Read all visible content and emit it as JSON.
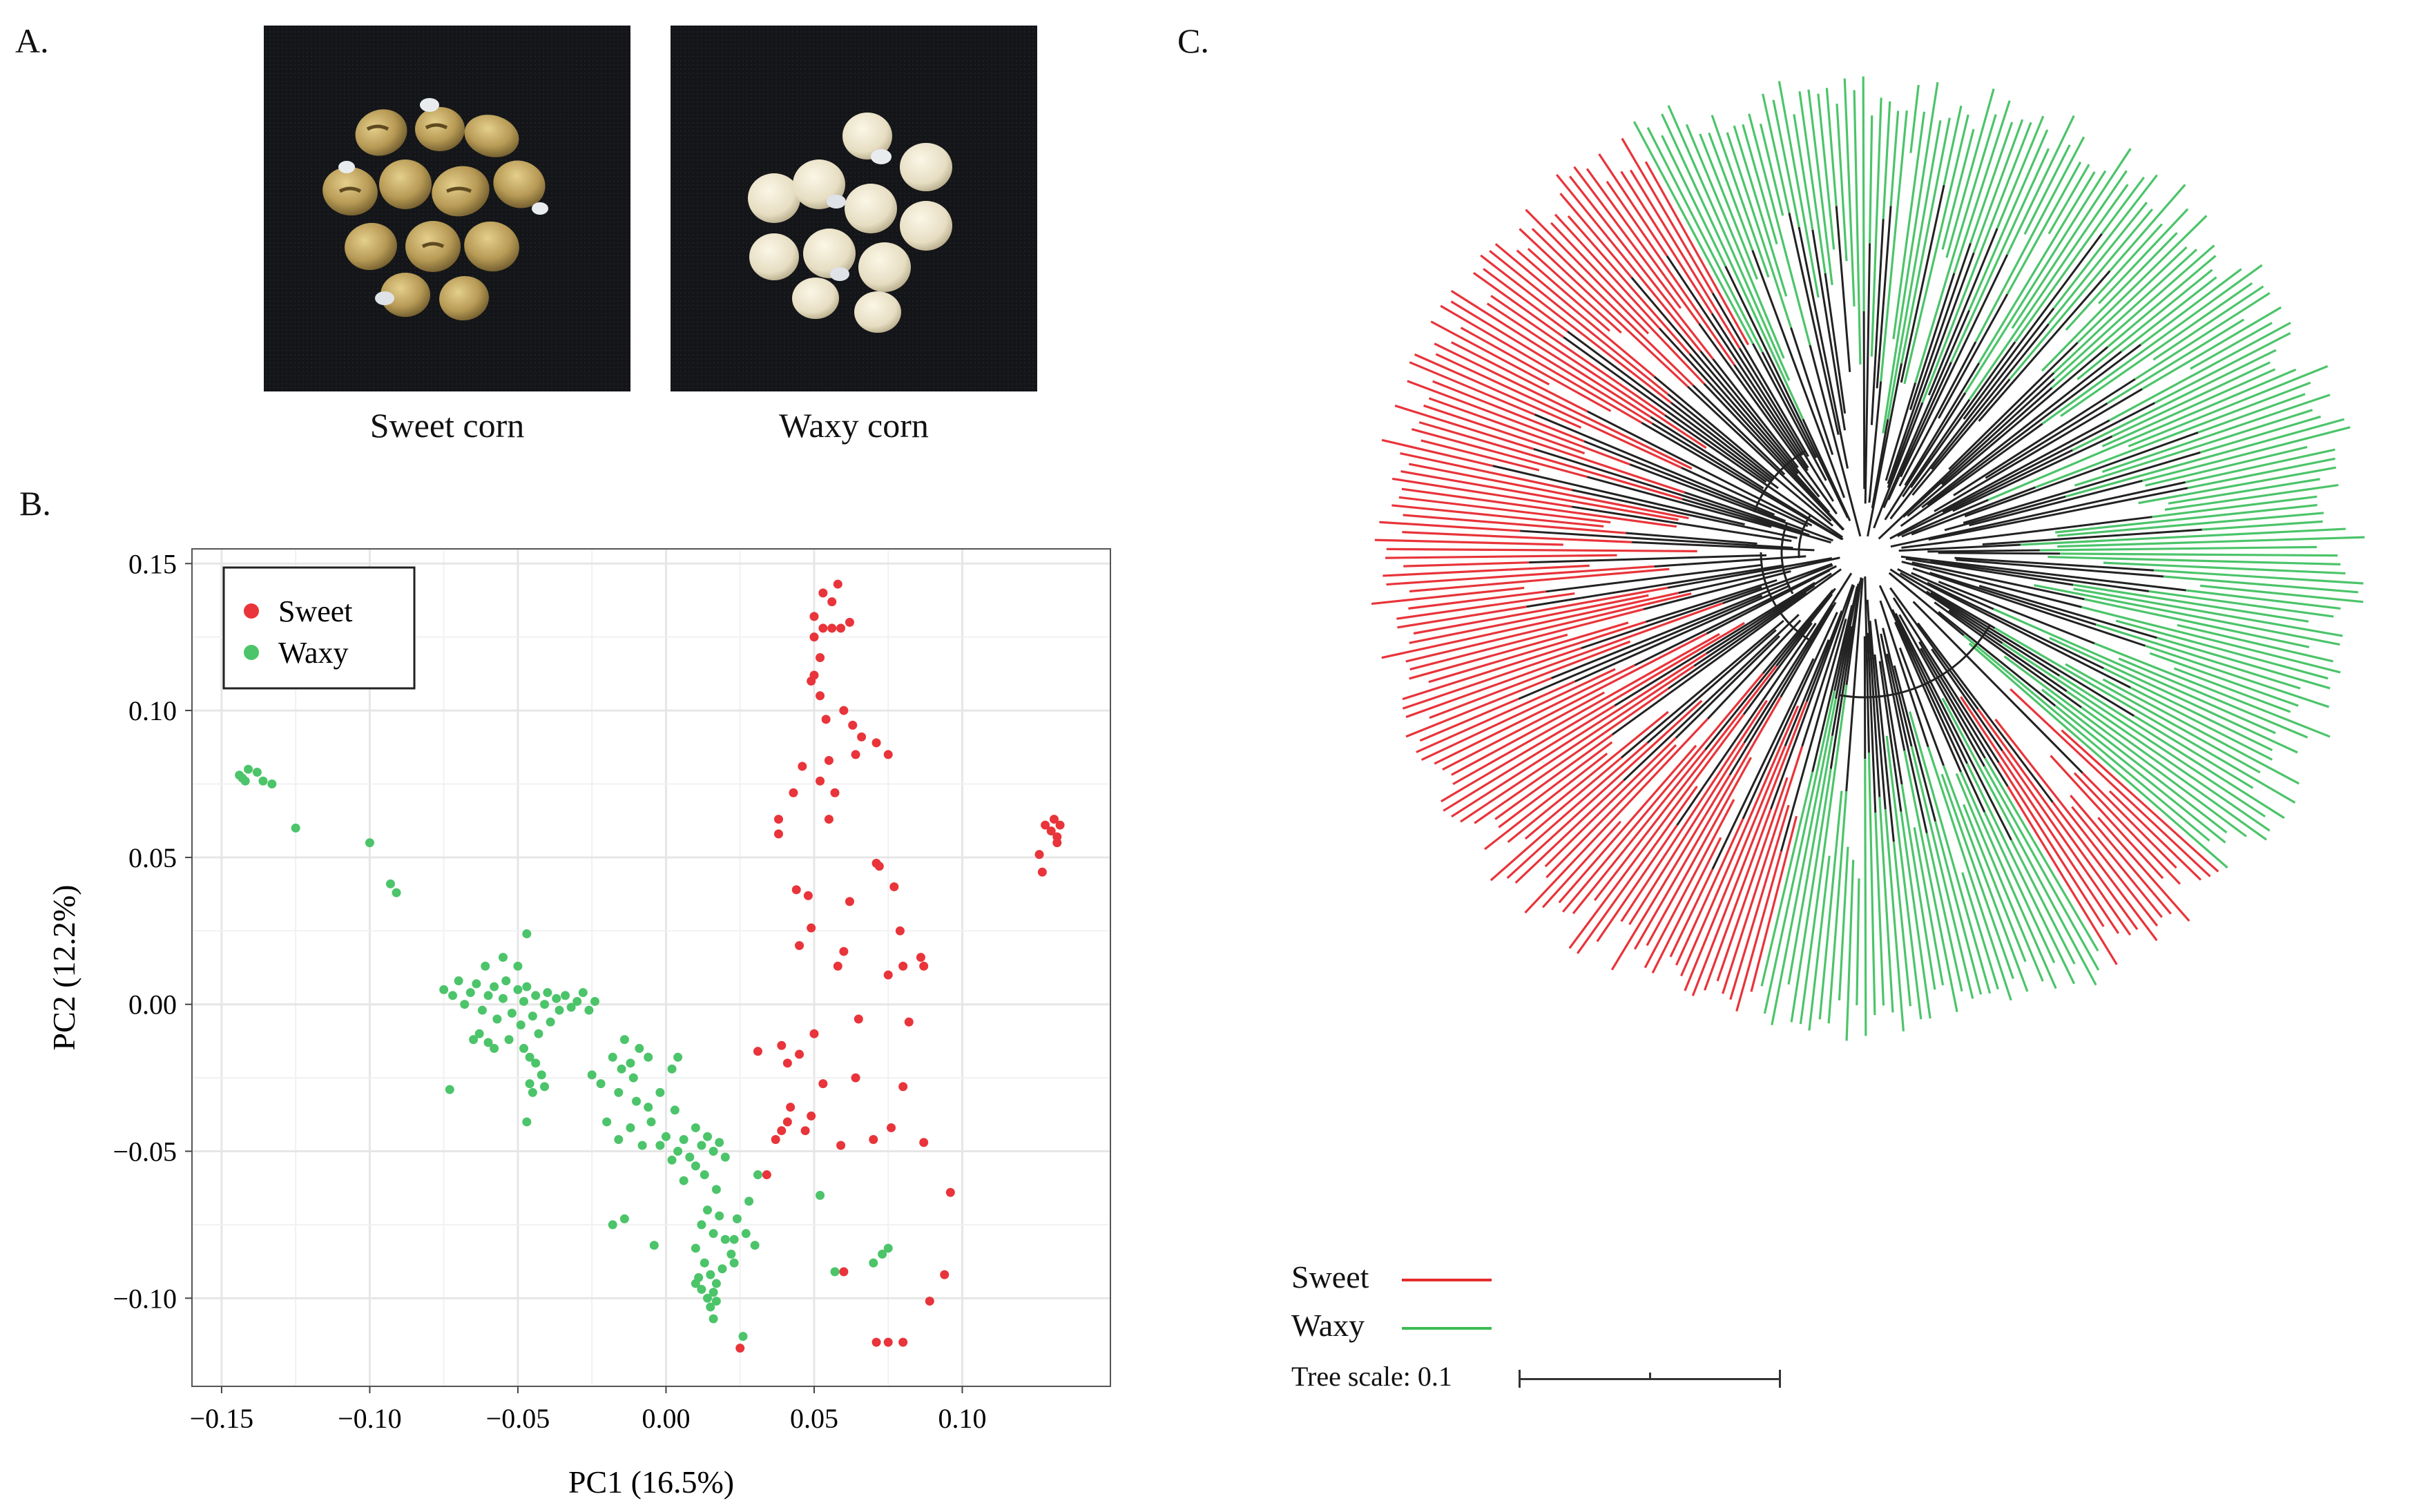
{
  "panel_a": {
    "label": "A.",
    "photo_left_caption": "Sweet corn",
    "photo_right_caption": "Waxy corn"
  },
  "panel_b": {
    "label": "B."
  },
  "panel_c": {
    "label": "C.",
    "legend": [
      {
        "name": "Sweet",
        "color": "#e52b2b"
      },
      {
        "name": "Waxy",
        "color": "#3dbb55"
      }
    ],
    "tree_scale_label": "Tree scale: 0.1"
  },
  "colors": {
    "sweet": "#e8343a",
    "waxy": "#4cc46a",
    "branch": "#222222"
  },
  "chart_data": {
    "type": "scatter",
    "xlabel": "PC1 (16.5%)",
    "ylabel": "PC2 (12.2%)",
    "xlim": [
      -0.16,
      0.15
    ],
    "ylim": [
      -0.13,
      0.155
    ],
    "xticks": [
      -0.15,
      -0.1,
      -0.05,
      0.0,
      0.05,
      0.1
    ],
    "xtick_labels": [
      "−0.15",
      "−0.10",
      "−0.05",
      "0.00",
      "0.05",
      "0.10"
    ],
    "yticks": [
      -0.1,
      -0.05,
      0.0,
      0.05,
      0.1,
      0.15
    ],
    "ytick_labels": [
      "−0.10",
      "−0.05",
      "0.00",
      "0.05",
      "0.10",
      "0.15"
    ],
    "grid": true,
    "legend_position": "top-left",
    "series": [
      {
        "name": "Sweet",
        "color": "#e8343a",
        "points": [
          [
            0.053,
            0.14
          ],
          [
            0.058,
            0.143
          ],
          [
            0.056,
            0.137
          ],
          [
            0.05,
            0.132
          ],
          [
            0.053,
            0.128
          ],
          [
            0.05,
            0.125
          ],
          [
            0.056,
            0.128
          ],
          [
            0.059,
            0.128
          ],
          [
            0.062,
            0.13
          ],
          [
            0.052,
            0.118
          ],
          [
            0.05,
            0.112
          ],
          [
            0.049,
            0.11
          ],
          [
            0.052,
            0.105
          ],
          [
            0.054,
            0.097
          ],
          [
            0.06,
            0.1
          ],
          [
            0.063,
            0.095
          ],
          [
            0.066,
            0.091
          ],
          [
            0.071,
            0.089
          ],
          [
            0.055,
            0.083
          ],
          [
            0.046,
            0.081
          ],
          [
            0.064,
            0.085
          ],
          [
            0.075,
            0.085
          ],
          [
            0.052,
            0.076
          ],
          [
            0.043,
            0.072
          ],
          [
            0.057,
            0.072
          ],
          [
            0.038,
            0.063
          ],
          [
            0.038,
            0.058
          ],
          [
            0.055,
            0.063
          ],
          [
            0.071,
            0.048
          ],
          [
            0.044,
            0.039
          ],
          [
            0.048,
            0.037
          ],
          [
            0.072,
            0.047
          ],
          [
            0.077,
            0.04
          ],
          [
            0.062,
            0.035
          ],
          [
            0.049,
            0.026
          ],
          [
            0.079,
            0.025
          ],
          [
            0.045,
            0.02
          ],
          [
            0.06,
            0.018
          ],
          [
            0.08,
            0.013
          ],
          [
            0.086,
            0.016
          ],
          [
            0.087,
            0.013
          ],
          [
            0.058,
            0.013
          ],
          [
            0.075,
            0.01
          ],
          [
            0.082,
            -0.006
          ],
          [
            0.065,
            -0.005
          ],
          [
            0.039,
            -0.014
          ],
          [
            0.045,
            -0.017
          ],
          [
            0.031,
            -0.016
          ],
          [
            0.041,
            -0.02
          ],
          [
            0.05,
            -0.01
          ],
          [
            0.064,
            -0.025
          ],
          [
            0.053,
            -0.027
          ],
          [
            0.08,
            -0.028
          ],
          [
            0.042,
            -0.035
          ],
          [
            0.041,
            -0.04
          ],
          [
            0.049,
            -0.038
          ],
          [
            0.039,
            -0.043
          ],
          [
            0.047,
            -0.043
          ],
          [
            0.037,
            -0.046
          ],
          [
            0.07,
            -0.046
          ],
          [
            0.076,
            -0.042
          ],
          [
            0.059,
            -0.048
          ],
          [
            0.087,
            -0.047
          ],
          [
            0.096,
            -0.064
          ],
          [
            0.034,
            -0.058
          ],
          [
            0.06,
            -0.091
          ],
          [
            0.089,
            -0.101
          ],
          [
            0.094,
            -0.092
          ],
          [
            0.071,
            -0.115
          ],
          [
            0.075,
            -0.115
          ],
          [
            0.08,
            -0.115
          ],
          [
            0.025,
            -0.117
          ],
          [
            0.126,
            0.051
          ],
          [
            0.127,
            0.045
          ],
          [
            0.128,
            0.061
          ],
          [
            0.131,
            0.063
          ],
          [
            0.13,
            0.059
          ],
          [
            0.132,
            0.057
          ],
          [
            0.133,
            0.061
          ],
          [
            0.132,
            0.055
          ]
        ]
      },
      {
        "name": "Waxy",
        "color": "#4cc46a",
        "points": [
          [
            -0.143,
            0.077
          ],
          [
            -0.141,
            0.08
          ],
          [
            -0.138,
            0.079
          ],
          [
            -0.144,
            0.078
          ],
          [
            -0.136,
            0.076
          ],
          [
            -0.133,
            0.075
          ],
          [
            -0.142,
            0.076
          ],
          [
            -0.125,
            0.06
          ],
          [
            -0.1,
            0.055
          ],
          [
            -0.093,
            0.041
          ],
          [
            -0.091,
            0.038
          ],
          [
            -0.075,
            0.005
          ],
          [
            -0.072,
            0.003
          ],
          [
            -0.07,
            0.008
          ],
          [
            -0.068,
            0.0
          ],
          [
            -0.066,
            0.004
          ],
          [
            -0.064,
            0.007
          ],
          [
            -0.062,
            -0.002
          ],
          [
            -0.06,
            0.003
          ],
          [
            -0.058,
            0.006
          ],
          [
            -0.057,
            -0.005
          ],
          [
            -0.055,
            0.002
          ],
          [
            -0.054,
            0.008
          ],
          [
            -0.052,
            -0.003
          ],
          [
            -0.05,
            0.005
          ],
          [
            -0.049,
            -0.007
          ],
          [
            -0.048,
            0.001
          ],
          [
            -0.047,
            0.006
          ],
          [
            -0.045,
            -0.004
          ],
          [
            -0.044,
            0.003
          ],
          [
            -0.043,
            -0.01
          ],
          [
            -0.041,
            0.0
          ],
          [
            -0.04,
            0.004
          ],
          [
            -0.039,
            -0.006
          ],
          [
            -0.037,
            0.002
          ],
          [
            -0.036,
            -0.002
          ],
          [
            -0.034,
            0.003
          ],
          [
            -0.032,
            -0.001
          ],
          [
            -0.03,
            0.001
          ],
          [
            -0.028,
            0.004
          ],
          [
            -0.026,
            -0.002
          ],
          [
            -0.024,
            0.001
          ],
          [
            -0.061,
            0.013
          ],
          [
            -0.055,
            0.016
          ],
          [
            -0.05,
            0.013
          ],
          [
            -0.047,
            0.024
          ],
          [
            -0.063,
            -0.01
          ],
          [
            -0.06,
            -0.013
          ],
          [
            -0.058,
            -0.015
          ],
          [
            -0.053,
            -0.012
          ],
          [
            -0.048,
            -0.015
          ],
          [
            -0.046,
            -0.018
          ],
          [
            -0.044,
            -0.02
          ],
          [
            -0.042,
            -0.024
          ],
          [
            -0.046,
            -0.027
          ],
          [
            -0.045,
            -0.03
          ],
          [
            -0.041,
            -0.028
          ],
          [
            -0.073,
            -0.029
          ],
          [
            -0.065,
            -0.012
          ],
          [
            -0.047,
            -0.04
          ],
          [
            -0.02,
            -0.04
          ],
          [
            -0.016,
            -0.046
          ],
          [
            -0.025,
            -0.024
          ],
          [
            -0.022,
            -0.027
          ],
          [
            -0.018,
            -0.018
          ],
          [
            -0.015,
            -0.022
          ],
          [
            -0.012,
            -0.02
          ],
          [
            -0.009,
            -0.015
          ],
          [
            -0.011,
            -0.025
          ],
          [
            -0.006,
            -0.018
          ],
          [
            -0.014,
            -0.012
          ],
          [
            -0.016,
            -0.03
          ],
          [
            -0.01,
            -0.033
          ],
          [
            -0.005,
            -0.04
          ],
          [
            0.002,
            -0.022
          ],
          [
            0.004,
            -0.018
          ],
          [
            0.0,
            -0.045
          ],
          [
            -0.002,
            -0.048
          ],
          [
            0.004,
            -0.05
          ],
          [
            0.006,
            -0.046
          ],
          [
            0.008,
            -0.052
          ],
          [
            0.01,
            -0.042
          ],
          [
            0.012,
            -0.048
          ],
          [
            0.014,
            -0.045
          ],
          [
            0.016,
            -0.05
          ],
          [
            0.018,
            -0.047
          ],
          [
            0.02,
            -0.052
          ],
          [
            0.006,
            -0.06
          ],
          [
            0.01,
            -0.055
          ],
          [
            0.013,
            -0.058
          ],
          [
            0.017,
            -0.063
          ],
          [
            0.002,
            -0.053
          ],
          [
            -0.012,
            -0.042
          ],
          [
            -0.008,
            -0.048
          ],
          [
            0.014,
            -0.07
          ],
          [
            0.012,
            -0.075
          ],
          [
            0.016,
            -0.078
          ],
          [
            0.018,
            -0.072
          ],
          [
            0.02,
            -0.08
          ],
          [
            0.022,
            -0.085
          ],
          [
            0.01,
            -0.083
          ],
          [
            0.013,
            -0.088
          ],
          [
            0.015,
            -0.092
          ],
          [
            0.017,
            -0.095
          ],
          [
            0.019,
            -0.09
          ],
          [
            0.012,
            -0.097
          ],
          [
            0.014,
            -0.1
          ],
          [
            0.016,
            -0.098
          ],
          [
            0.011,
            -0.093
          ],
          [
            0.015,
            -0.103
          ],
          [
            0.017,
            -0.101
          ],
          [
            0.01,
            -0.095
          ],
          [
            0.024,
            -0.073
          ],
          [
            0.027,
            -0.078
          ],
          [
            0.03,
            -0.082
          ],
          [
            0.023,
            -0.088
          ],
          [
            0.028,
            -0.067
          ],
          [
            0.031,
            -0.058
          ],
          [
            0.026,
            -0.113
          ],
          [
            0.016,
            -0.107
          ],
          [
            0.023,
            -0.08
          ],
          [
            -0.002,
            -0.03
          ],
          [
            -0.006,
            -0.035
          ],
          [
            0.003,
            -0.036
          ],
          [
            -0.018,
            -0.075
          ],
          [
            -0.014,
            -0.073
          ],
          [
            -0.004,
            -0.082
          ],
          [
            0.052,
            -0.065
          ],
          [
            0.057,
            -0.091
          ],
          [
            0.073,
            -0.085
          ],
          [
            0.075,
            -0.083
          ],
          [
            0.07,
            -0.088
          ]
        ]
      }
    ]
  }
}
